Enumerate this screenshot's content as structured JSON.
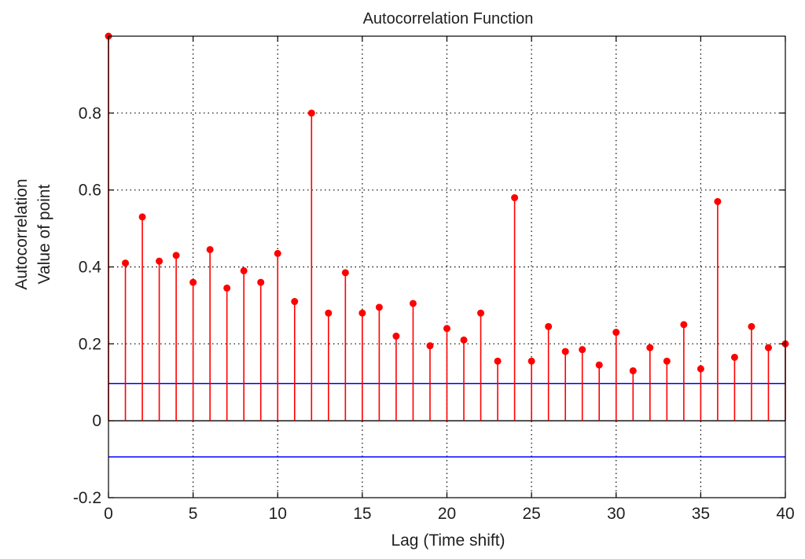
{
  "chart_data": {
    "type": "stem",
    "title": "Autocorrelation Function",
    "xlabel": "Lag  (Time shift)",
    "ylabel": [
      "Autocorrelation",
      "Value of point"
    ],
    "xlim": [
      0,
      40
    ],
    "ylim": [
      -0.2,
      1.0
    ],
    "xticks": [
      0,
      5,
      10,
      15,
      20,
      25,
      30,
      35,
      40
    ],
    "yticks": [
      -0.2,
      0,
      0.2,
      0.4,
      0.6,
      0.8
    ],
    "ytick_labels": [
      "-0.2",
      "0",
      "0.2",
      "0.4",
      "0.6",
      "0.8"
    ],
    "grid": true,
    "series": [
      {
        "lags": [
          0,
          1,
          2,
          3,
          4,
          5,
          6,
          7,
          8,
          9,
          10,
          11,
          12,
          13,
          14,
          15,
          16,
          17,
          18,
          19,
          20,
          21,
          22,
          23,
          24,
          25,
          26,
          27,
          28,
          29,
          30,
          31,
          32,
          33,
          34,
          35,
          36,
          37,
          38,
          39,
          40
        ],
        "values": [
          1.0,
          0.41,
          0.53,
          0.415,
          0.43,
          0.36,
          0.445,
          0.345,
          0.39,
          0.36,
          0.435,
          0.31,
          0.8,
          0.28,
          0.385,
          0.28,
          0.295,
          0.22,
          0.305,
          0.195,
          0.24,
          0.21,
          0.28,
          0.155,
          0.58,
          0.155,
          0.245,
          0.18,
          0.185,
          0.145,
          0.23,
          0.13,
          0.19,
          0.155,
          0.25,
          0.135,
          0.57,
          0.165,
          0.245,
          0.19,
          0.2
        ]
      }
    ],
    "confidence_bounds": [
      0.097,
      -0.094
    ],
    "colors": {
      "stem": "#ff0000",
      "bounds": "#0000ff",
      "grid": "#000000",
      "axes": "#000000"
    }
  }
}
